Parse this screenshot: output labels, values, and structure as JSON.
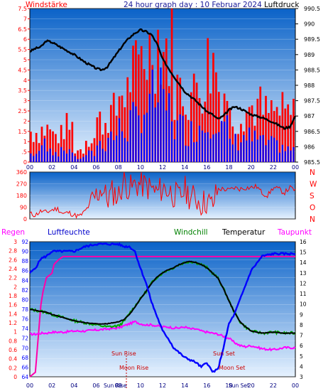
{
  "header": {
    "left": "Windstärke",
    "title": "24 hour graph day : 10 Februar 2024",
    "right": "Luftdruck"
  },
  "x_ticks": [
    "00",
    "02",
    "04",
    "06",
    "08",
    "10",
    "12",
    "14",
    "16",
    "18",
    "20",
    "22",
    "00"
  ],
  "wind_dir_letters": [
    "N",
    "W",
    "S",
    "O",
    "N"
  ],
  "legend": {
    "regen": "Regen",
    "luftfeuchte": "Luftfeuchte",
    "windchill": "Windchill",
    "temperatur": "Temperatur",
    "taupunkt": "Taupunkt"
  },
  "events": {
    "sun_rise": "Sun Rise",
    "sun_set": "Sun Set",
    "moon_rise": "Moon Rise",
    "moon_set": "Moon Set",
    "sun_rise_bottom": "Sun Rise",
    "sun_set_bottom": "Sun Set"
  },
  "colors": {
    "wind_gust": "#ff0000",
    "wind_avg": "#0000ff",
    "pressure": "#000000",
    "wind_dir": "#ff0000",
    "humidity": "#0000ff",
    "temperature": "#000000",
    "windchill": "#008000",
    "dewpoint": "#ff00ff",
    "rain": "#ff0066",
    "axis_left": "#ff0000",
    "axis_right": "#000000",
    "axis_humidity": "#0000ff",
    "event_label": "#cc0000",
    "plot_top": "#0a62c8",
    "plot_bottom": "#e6f2ff"
  },
  "chart_data": [
    {
      "type": "bar",
      "panel": "wind",
      "ylim": [
        0,
        7.5
      ],
      "y_ticks": [
        "0",
        ".5",
        "1",
        "1.5",
        "2",
        "2.5",
        "3",
        "3.5",
        "4",
        "4.5",
        "5",
        "5.5",
        "6",
        "6.5",
        "7",
        "7.5"
      ],
      "y2_ticks": [
        "985.5",
        "986",
        "986.5",
        "987",
        "987.5",
        "988",
        "988.5",
        "989",
        "989.5",
        "990",
        "990.5"
      ],
      "y2lim": [
        985.5,
        990.5
      ],
      "xlim": [
        0,
        24
      ],
      "wind_gust_hourly": [
        1.5,
        1.6,
        1.3,
        1.7,
        0.6,
        1.2,
        2.0,
        2.4,
        3.4,
        4.3,
        5.4,
        6.0,
        5.6,
        3.6,
        3.3,
        3.9,
        4.8,
        3.5,
        2.2,
        2.6,
        2.7,
        2.4,
        2.4,
        2.3
      ],
      "wind_avg_hourly": [
        0.4,
        0.9,
        0.5,
        0.6,
        0.2,
        0.4,
        0.9,
        1.3,
        1.6,
        2.0,
        2.7,
        3.1,
        2.6,
        1.7,
        1.5,
        1.8,
        2.3,
        1.6,
        1.0,
        1.2,
        1.1,
        0.9,
        0.8,
        0.6
      ],
      "pressure_x": [
        0,
        0.5,
        1,
        1.5,
        2,
        3,
        4,
        5,
        6,
        6.5,
        7,
        7.5,
        8,
        8.5,
        9,
        9.5,
        10,
        10.5,
        11,
        11.5,
        12,
        13,
        14,
        15,
        16,
        16.5,
        17,
        17.5,
        18,
        18.5,
        19,
        19.5,
        20,
        21,
        22,
        23,
        23.5,
        24
      ],
      "pressure_y": [
        989.1,
        989.2,
        989.25,
        989.45,
        989.4,
        989.2,
        989.0,
        988.75,
        988.55,
        988.5,
        988.6,
        988.85,
        989.1,
        989.35,
        989.55,
        989.7,
        989.8,
        989.75,
        989.65,
        989.35,
        988.85,
        988.3,
        987.8,
        987.5,
        987.15,
        987.05,
        986.9,
        987.0,
        987.2,
        987.3,
        987.25,
        987.15,
        987.05,
        986.95,
        986.8,
        986.6,
        986.65,
        987.0
      ]
    },
    {
      "type": "line",
      "panel": "wind_direction",
      "ylim": [
        0,
        360
      ],
      "y_ticks": [
        "0",
        "90",
        "180",
        "270",
        "360"
      ],
      "xlim": [
        0,
        24
      ],
      "x": [
        0,
        0.5,
        1,
        1.5,
        2,
        2.5,
        3,
        3.5,
        4,
        4.5,
        5,
        5.5,
        6,
        6.5,
        7,
        7.5,
        8,
        8.5,
        9,
        9.5,
        10,
        10.5,
        11,
        11.5,
        12,
        12.5,
        13,
        13.5,
        14,
        14.5,
        15,
        15.5,
        16,
        16.5,
        17,
        17.5,
        18,
        18.5,
        19,
        19.5,
        20,
        20.5,
        21,
        21.5,
        22,
        22.5,
        23,
        23.5,
        24
      ],
      "y": [
        40,
        30,
        60,
        50,
        70,
        80,
        40,
        50,
        30,
        20,
        60,
        120,
        180,
        240,
        150,
        210,
        170,
        300,
        230,
        260,
        270,
        250,
        230,
        200,
        240,
        220,
        190,
        160,
        230,
        170,
        160,
        120,
        140,
        100,
        230,
        230,
        220,
        240,
        230,
        240,
        240,
        250,
        200,
        180,
        240,
        230,
        200,
        240,
        220
      ]
    },
    {
      "type": "line",
      "panel": "climate",
      "xlim": [
        0,
        24
      ],
      "y_humidity_ticks": [
        "64",
        "66",
        "68",
        "70",
        "72",
        "74",
        "76",
        "78",
        "80",
        "82",
        "84",
        "86",
        "88",
        "90",
        "92"
      ],
      "y_rain_ticks": [
        "0",
        "0.2",
        "0.4",
        "0.6",
        "0.8",
        "1",
        "1.2",
        "1.4",
        "1.6",
        "1.8",
        "2",
        "2.2",
        "2.4",
        "2.6",
        "2.8",
        "3"
      ],
      "y_temp_ticks": [
        "3",
        "4",
        "5",
        "6",
        "7",
        "8",
        "9",
        "10",
        "11",
        "12",
        "13",
        "14",
        "15",
        "16"
      ],
      "humidity_lim": [
        64,
        92
      ],
      "rain_lim": [
        0,
        3
      ],
      "temp_lim": [
        3,
        16
      ],
      "x": [
        0,
        0.5,
        1,
        1.5,
        2,
        3,
        4,
        5,
        6,
        7,
        8,
        8.5,
        9,
        9.5,
        10,
        10.5,
        11,
        11.5,
        12,
        12.5,
        13,
        13.5,
        14,
        14.5,
        15,
        15.5,
        16,
        16.5,
        17,
        17.5,
        18,
        18.5,
        19,
        19.5,
        20,
        21,
        22,
        23,
        24
      ],
      "humidity": [
        85.5,
        86.5,
        88.5,
        89,
        90,
        90,
        90,
        91,
        91.5,
        91.5,
        91.5,
        91,
        91,
        90,
        86.5,
        83.5,
        79.5,
        76.5,
        73.5,
        72,
        70,
        69,
        68,
        67.5,
        67,
        66,
        67,
        65,
        65.5,
        70,
        75,
        77,
        80,
        83,
        86,
        89,
        89.5,
        89.5,
        89.5
      ],
      "temperature": [
        9.5,
        9.4,
        9.3,
        9.2,
        9.0,
        8.7,
        8.4,
        8.2,
        8.1,
        8.1,
        8.3,
        8.5,
        9.0,
        9.7,
        10.5,
        11.2,
        12.0,
        12.6,
        13.0,
        13.3,
        13.5,
        13.8,
        14.0,
        14.1,
        14.0,
        13.8,
        13.5,
        13.0,
        12.5,
        11.5,
        10.3,
        9.2,
        8.3,
        7.8,
        7.4,
        7.2,
        7.3,
        7.2,
        7.2
      ],
      "windchill": [
        9.5,
        9.4,
        9.3,
        9.2,
        9.0,
        8.7,
        8.4,
        8.2,
        8.0,
        7.8,
        7.9,
        8.3,
        9.1,
        9.8,
        10.5,
        11.2,
        12.0,
        12.6,
        13.0,
        13.3,
        13.5,
        13.8,
        14.0,
        14.1,
        14.0,
        13.8,
        13.5,
        13.0,
        12.5,
        11.5,
        10.3,
        9.2,
        8.3,
        7.8,
        7.4,
        7.2,
        7.3,
        7.2,
        7.2
      ],
      "dewpoint": [
        7.1,
        7.1,
        7.2,
        7.2,
        7.3,
        7.3,
        7.4,
        7.4,
        7.5,
        7.6,
        7.7,
        7.9,
        8.1,
        8.3,
        8.1,
        8.0,
        8.0,
        7.9,
        7.8,
        7.8,
        7.7,
        7.7,
        7.8,
        7.6,
        7.6,
        7.4,
        7.3,
        7.2,
        7.1,
        6.9,
        6.7,
        6.3,
        6.0,
        5.9,
        6.0,
        5.7,
        5.6,
        5.8,
        5.8
      ],
      "rain_x": [
        0,
        0.5,
        0.8,
        1,
        1.2,
        1.5,
        2,
        2.2,
        2.6,
        3,
        3.5,
        4,
        6,
        8,
        10,
        12,
        14,
        16,
        18,
        20,
        22,
        24
      ],
      "rain": [
        0,
        0.1,
        1.0,
        1.6,
        1.9,
        2.2,
        2.3,
        2.5,
        2.6,
        2.67,
        2.67,
        2.67,
        2.67,
        2.67,
        2.67,
        2.67,
        2.67,
        2.67,
        2.67,
        2.67,
        2.67,
        2.67
      ]
    }
  ]
}
